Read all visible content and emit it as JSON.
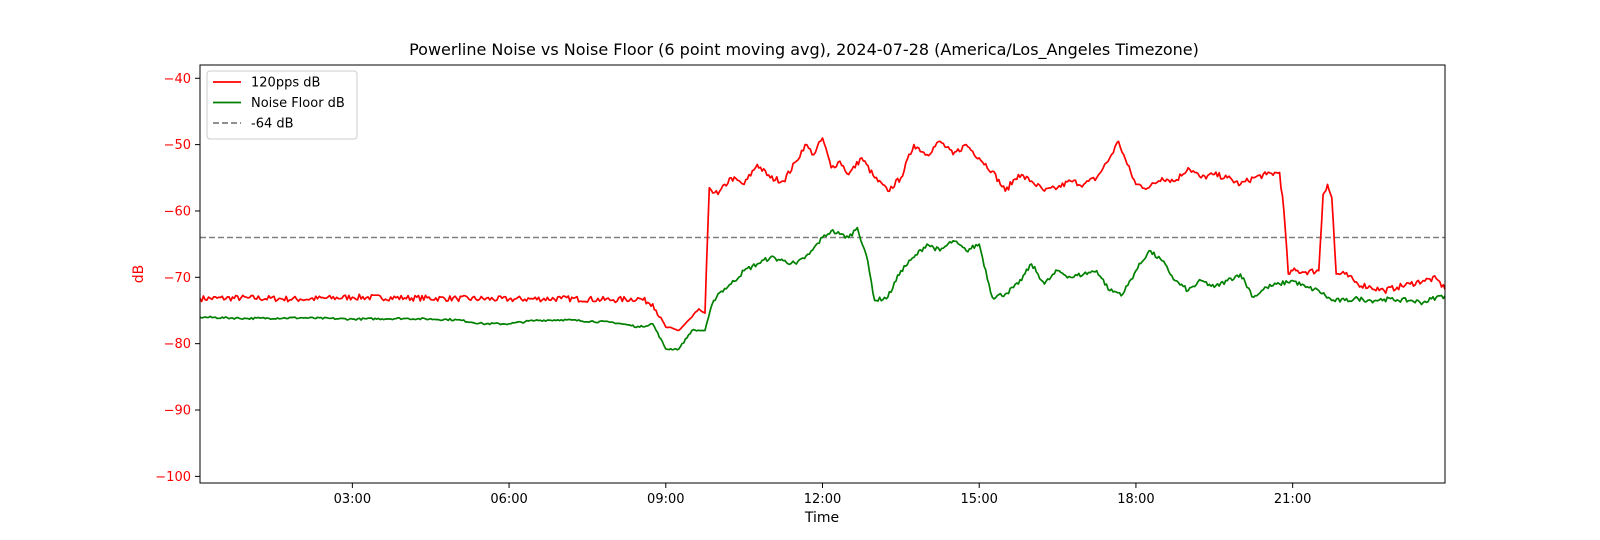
{
  "chart_data": {
    "type": "line",
    "title": "Powerline Noise vs Noise Floor (6 point moving avg), 2024-07-28 (America/Los_Angeles Timezone)",
    "xlabel": "Time",
    "ylabel": "dB",
    "xlim": [
      "00:05",
      "23:55"
    ],
    "ylim": [
      -101,
      -38
    ],
    "x_ticks": [
      "03:00",
      "06:00",
      "09:00",
      "12:00",
      "15:00",
      "18:00",
      "21:00"
    ],
    "y_ticks": [
      -40,
      -50,
      -60,
      -70,
      -80,
      -90,
      -100
    ],
    "legend_position": "top-left",
    "grid": false,
    "colors": {
      "axis_text_y": "#ff0000",
      "pps": "#ff0000",
      "floor": "#008000",
      "ref": "#808080"
    },
    "series": [
      {
        "name": "120pps dB",
        "color": "#ff0000",
        "x": [
          "00:05",
          "01:00",
          "02:00",
          "03:00",
          "04:00",
          "05:00",
          "06:00",
          "07:00",
          "08:00",
          "08:30",
          "08:45",
          "09:00",
          "09:15",
          "09:30",
          "09:40",
          "09:45",
          "09:50",
          "10:00",
          "10:15",
          "10:30",
          "10:45",
          "11:00",
          "11:15",
          "11:30",
          "11:40",
          "11:50",
          "12:00",
          "12:10",
          "12:20",
          "12:30",
          "12:45",
          "13:00",
          "13:15",
          "13:30",
          "13:45",
          "14:00",
          "14:15",
          "14:30",
          "14:45",
          "15:00",
          "15:15",
          "15:30",
          "15:45",
          "16:00",
          "16:15",
          "16:30",
          "16:45",
          "17:00",
          "17:15",
          "17:30",
          "17:40",
          "17:50",
          "18:00",
          "18:15",
          "18:30",
          "18:45",
          "19:00",
          "19:15",
          "19:30",
          "19:45",
          "20:00",
          "20:15",
          "20:30",
          "20:45",
          "20:50",
          "20:55",
          "21:00",
          "21:15",
          "21:30",
          "21:35",
          "21:40",
          "21:45",
          "21:50",
          "22:00",
          "22:15",
          "22:30",
          "22:45",
          "23:00",
          "23:15",
          "23:30",
          "23:45",
          "23:55"
        ],
        "values": [
          -73.2,
          -73.1,
          -73.3,
          -73.0,
          -73.1,
          -73.2,
          -73.3,
          -73.2,
          -73.4,
          -73.2,
          -74.0,
          -77.5,
          -78.0,
          -76.0,
          -75.0,
          -75.4,
          -56.5,
          -57.5,
          -55.0,
          -56.0,
          -53.0,
          -55.0,
          -55.5,
          -52.5,
          -50.0,
          -51.5,
          -49.0,
          -53.5,
          -52.5,
          -54.5,
          -52.0,
          -55.0,
          -57.0,
          -55.0,
          -50.0,
          -51.5,
          -49.5,
          -51.5,
          -50.0,
          -52.0,
          -54.0,
          -57.0,
          -54.5,
          -55.5,
          -57.0,
          -56.5,
          -55.5,
          -56.0,
          -55.0,
          -52.0,
          -49.5,
          -53.0,
          -56.0,
          -56.5,
          -55.0,
          -55.5,
          -53.5,
          -55.0,
          -54.5,
          -55.0,
          -56.0,
          -55.0,
          -54.5,
          -54.2,
          -60.0,
          -69.5,
          -69.0,
          -69.2,
          -69.0,
          -57.5,
          -56.0,
          -58.0,
          -69.5,
          -69.5,
          -71.0,
          -71.5,
          -72.0,
          -71.5,
          -71.0,
          -70.5,
          -70.2,
          -71.8
        ]
      },
      {
        "name": "Noise Floor dB",
        "color": "#008000",
        "x": [
          "00:05",
          "01:00",
          "02:00",
          "03:00",
          "04:00",
          "05:00",
          "05:30",
          "06:00",
          "06:30",
          "07:00",
          "08:00",
          "08:30",
          "08:45",
          "09:00",
          "09:15",
          "09:30",
          "09:45",
          "09:55",
          "10:00",
          "10:15",
          "10:30",
          "10:45",
          "11:00",
          "11:15",
          "11:30",
          "11:45",
          "12:00",
          "12:10",
          "12:20",
          "12:30",
          "12:40",
          "12:50",
          "13:00",
          "13:15",
          "13:30",
          "13:45",
          "14:00",
          "14:15",
          "14:30",
          "14:45",
          "15:00",
          "15:15",
          "15:30",
          "15:45",
          "16:00",
          "16:15",
          "16:30",
          "16:45",
          "17:00",
          "17:15",
          "17:30",
          "17:45",
          "18:00",
          "18:15",
          "18:30",
          "18:45",
          "19:00",
          "19:15",
          "19:30",
          "19:45",
          "20:00",
          "20:15",
          "20:30",
          "20:45",
          "21:00",
          "21:15",
          "21:30",
          "21:45",
          "22:00",
          "22:15",
          "22:30",
          "22:45",
          "23:00",
          "23:15",
          "23:30",
          "23:45",
          "23:55"
        ],
        "values": [
          -76.0,
          -76.2,
          -76.1,
          -76.3,
          -76.2,
          -76.4,
          -77.0,
          -77.0,
          -76.5,
          -76.4,
          -76.8,
          -77.5,
          -77.0,
          -80.8,
          -80.8,
          -78.0,
          -78.0,
          -73.5,
          -72.5,
          -71.0,
          -69.0,
          -68.0,
          -67.0,
          -67.5,
          -68.0,
          -66.5,
          -64.0,
          -63.0,
          -63.5,
          -64.0,
          -62.5,
          -66.5,
          -73.5,
          -73.0,
          -69.0,
          -67.0,
          -65.0,
          -66.0,
          -64.5,
          -66.0,
          -65.0,
          -73.0,
          -72.5,
          -71.0,
          -68.0,
          -71.0,
          -69.0,
          -70.0,
          -69.5,
          -69.0,
          -72.0,
          -72.5,
          -69.0,
          -66.0,
          -67.5,
          -70.5,
          -72.0,
          -70.5,
          -71.5,
          -70.5,
          -69.5,
          -73.0,
          -71.5,
          -71.0,
          -70.5,
          -71.5,
          -72.0,
          -73.5,
          -73.5,
          -73.2,
          -73.5,
          -73.3,
          -73.4,
          -73.5,
          -73.8,
          -73.0,
          -72.8
        ]
      },
      {
        "name": "-64 dB",
        "color": "#808080",
        "style": "dashed",
        "x": [
          "00:05",
          "23:55"
        ],
        "values": [
          -64,
          -64
        ]
      }
    ]
  }
}
